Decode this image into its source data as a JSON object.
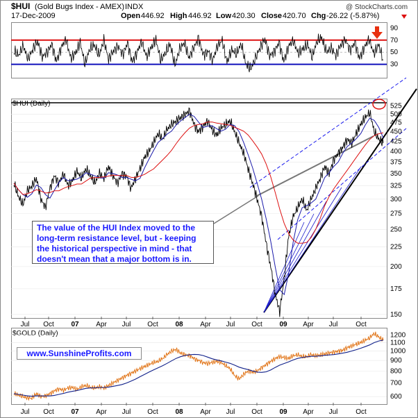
{
  "header": {
    "symbol": "$HUI",
    "name": "(Gold Bugs Index - AMEX)",
    "exchange": "INDX",
    "date": "17-Dec-2009",
    "open_label": "Open",
    "open": "446.92",
    "high_label": "High",
    "high": "446.92",
    "low_label": "Low",
    "low": "420.30",
    "close_label": "Close",
    "close": "420.70",
    "chg_label": "Chg",
    "chg": "-26.22 (-5.87%)",
    "watermark": "@ StockCharts.com"
  },
  "annotation": "The value of the HUI Index moved to the long-term resistance level, but - keeping the historical perspective in mind - that doesn't mean that a major bottom is in.",
  "website": "www.SunshineProfits.com",
  "colors": {
    "price": "#000000",
    "ma_fast": "#1a1aaa",
    "ma_slow": "#dd1111",
    "gold_price": "#e07010",
    "gold_ma": "#10208a",
    "rsi_upper": "#dd1111",
    "rsi_lower": "#1111bb",
    "annotation_text": "#1a1aff",
    "arrow": "#e83010"
  },
  "chart_data": [
    {
      "type": "line",
      "panel": "rsi",
      "title": "",
      "ylim": [
        10,
        95
      ],
      "y_ticks": [
        90,
        70,
        50,
        30
      ],
      "reference_lines": [
        70,
        30
      ],
      "values": [
        52,
        45,
        60,
        38,
        55,
        68,
        42,
        50,
        63,
        35,
        58,
        72,
        40,
        48,
        66,
        30,
        55,
        62,
        44,
        70,
        38,
        52,
        60,
        46,
        65,
        34,
        50,
        68,
        42,
        57,
        71,
        36,
        49,
        63,
        28,
        55,
        66,
        41,
        58,
        73,
        45,
        52,
        37,
        61,
        69,
        33,
        54,
        47,
        64,
        30,
        22,
        40,
        58,
        72,
        44,
        51,
        66,
        35,
        60,
        70,
        48,
        55,
        63,
        42,
        68,
        74,
        50,
        57,
        45,
        62,
        71,
        53,
        66,
        40,
        58,
        72,
        47,
        62,
        37
      ]
    },
    {
      "type": "line",
      "panel": "price",
      "title": "$HUI (Daily)",
      "ylim": [
        148,
        540
      ],
      "y_ticks": [
        525,
        500,
        475,
        450,
        425,
        400,
        375,
        350,
        325,
        300,
        275,
        250,
        225,
        200,
        175,
        150
      ],
      "x_ticks": [
        "Jul",
        "Oct",
        "07",
        "Apr",
        "Jul",
        "Oct",
        "08",
        "Apr",
        "Jul",
        "Oct",
        "09",
        "Apr",
        "Jul",
        "Oct"
      ],
      "series": [
        {
          "name": "",
          "values": [
            330,
            305,
            290,
            315,
            325,
            340,
            300,
            285,
            320,
            345,
            330,
            350,
            325,
            335,
            355,
            340,
            360,
            345,
            330,
            350,
            340,
            365,
            345,
            330,
            350,
            345,
            320,
            340,
            360,
            385,
            400,
            420,
            445,
            430,
            455,
            470,
            480,
            490,
            500,
            510,
            470,
            450,
            465,
            480,
            455,
            440,
            460,
            470,
            480,
            450,
            420,
            395,
            360,
            330,
            300,
            270,
            230,
            200,
            170,
            152,
            185,
            240,
            270,
            285,
            300,
            280,
            300,
            320,
            340,
            365,
            350,
            380,
            395,
            410,
            430,
            420,
            445,
            470,
            490,
            505,
            450,
            430,
            420
          ]
        },
        {
          "name": "",
          "values": []
        },
        {
          "name": "",
          "values": []
        }
      ]
    },
    {
      "type": "line",
      "panel": "gold",
      "title": "$GOLD (Daily)",
      "ylim": [
        560,
        1260
      ],
      "y_ticks": [
        1200,
        1100,
        1000,
        900,
        800,
        700,
        600
      ],
      "x_ticks": [
        "Jul",
        "Oct",
        "07",
        "Apr",
        "Jul",
        "Oct",
        "08",
        "Apr",
        "Jul",
        "Oct",
        "09",
        "Apr",
        "Jul",
        "Oct"
      ],
      "series": [
        {
          "name": "",
          "values": [
            620,
            610,
            600,
            590,
            590,
            620,
            600,
            605,
            620,
            640,
            655,
            645,
            660,
            665,
            650,
            670,
            680,
            665,
            660,
            670,
            660,
            680,
            700,
            720,
            740,
            760,
            780,
            800,
            820,
            840,
            860,
            880,
            890,
            920,
            960,
            1000,
            1020,
            980,
            960,
            950,
            920,
            900,
            880,
            870,
            880,
            890,
            880,
            850,
            820,
            760,
            730,
            770,
            800,
            790,
            800,
            830,
            860,
            890,
            920,
            940,
            930,
            920,
            950,
            960,
            940,
            940,
            960,
            950,
            960,
            970,
            980,
            990,
            1000,
            1010,
            1040,
            1060,
            1080,
            1100,
            1130,
            1160,
            1220,
            1170,
            1130
          ]
        },
        {
          "name": "",
          "values": []
        }
      ]
    }
  ]
}
